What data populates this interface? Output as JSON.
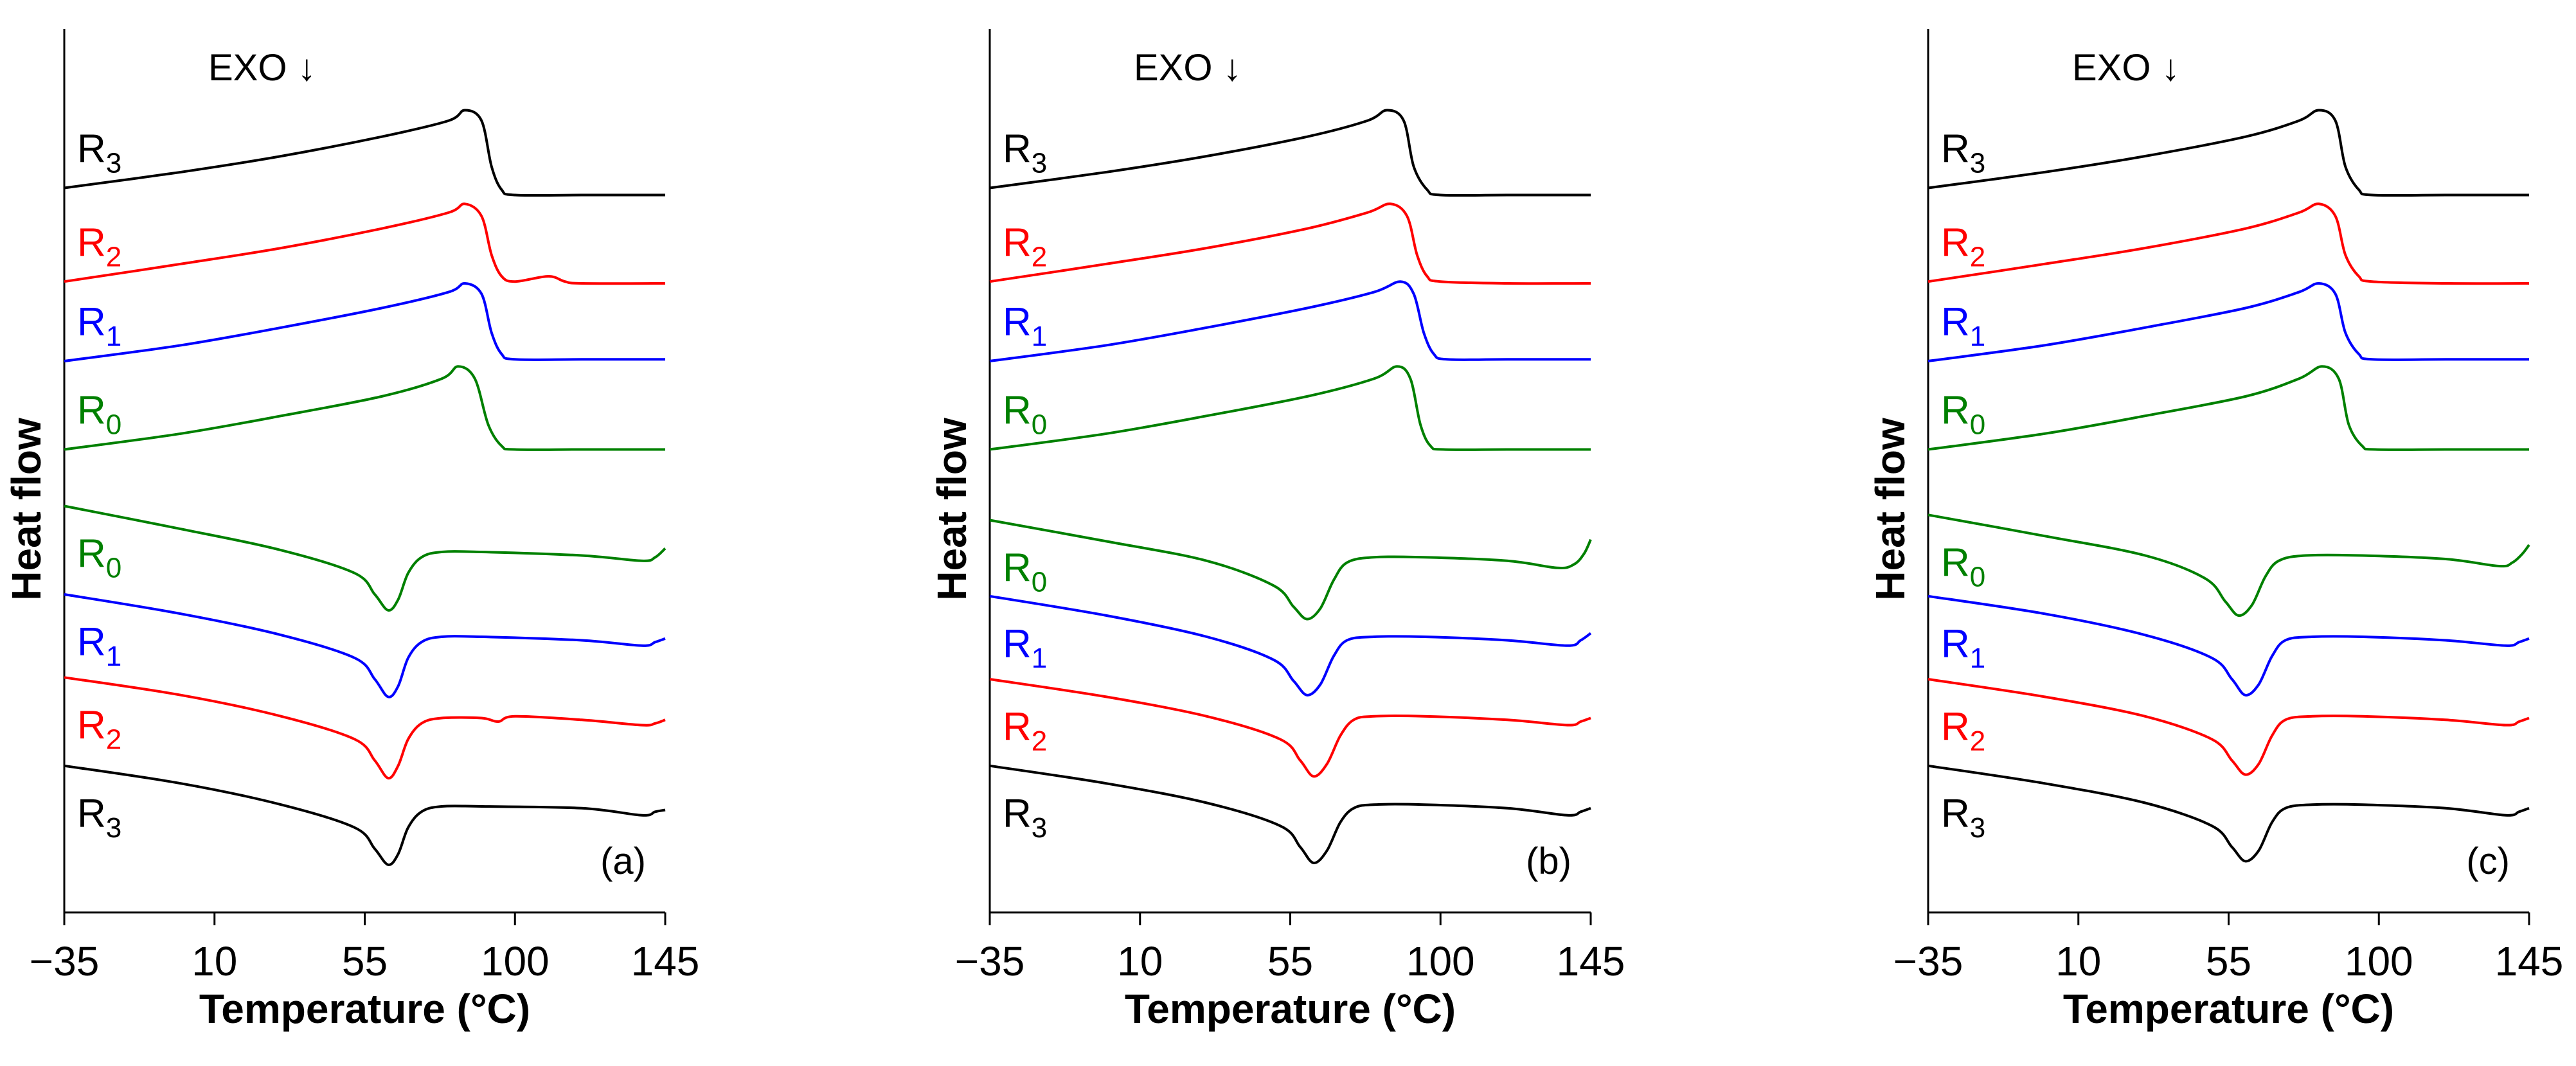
{
  "chart_data": [
    {
      "panel_label": "(a)",
      "type": "line",
      "xlabel": "Temperature (°C)",
      "ylabel": "Heat flow",
      "annotation": "EXO ↓",
      "xlim": [
        -35,
        145
      ],
      "x_ticks": [
        "−35",
        "10",
        "55",
        "100",
        "145"
      ],
      "series": [
        {
          "name": "R3",
          "label_main": "R",
          "label_sub": "3",
          "group": "upper",
          "color": "#000000",
          "x": [
            -35,
            0,
            30,
            60,
            80,
            85,
            90,
            93,
            96,
            100,
            120,
            145
          ],
          "y": [
            10.0,
            10.45,
            10.9,
            11.45,
            11.9,
            12.2,
            11.9,
            10.6,
            9.95,
            9.8,
            9.8,
            9.8
          ]
        },
        {
          "name": "R2",
          "label_main": "R",
          "label_sub": "2",
          "group": "upper",
          "color": "#ff0000",
          "x": [
            -35,
            0,
            30,
            60,
            80,
            85,
            90,
            93,
            96,
            100,
            110,
            115,
            120,
            145
          ],
          "y": [
            7.35,
            7.85,
            8.3,
            8.85,
            9.3,
            9.55,
            9.2,
            8.1,
            7.5,
            7.35,
            7.5,
            7.35,
            7.3,
            7.3
          ]
        },
        {
          "name": "R1",
          "label_main": "R",
          "label_sub": "1",
          "group": "upper",
          "color": "#0000ff",
          "x": [
            -35,
            0,
            30,
            60,
            80,
            85,
            90,
            93,
            96,
            100,
            120,
            145
          ],
          "y": [
            5.1,
            5.55,
            6.05,
            6.6,
            7.05,
            7.3,
            7.0,
            5.9,
            5.3,
            5.15,
            5.15,
            5.15
          ]
        },
        {
          "name": "R0",
          "label_main": "R",
          "label_sub": "0",
          "group": "upper",
          "color": "#008000",
          "x": [
            -35,
            0,
            30,
            60,
            78,
            83,
            88,
            92,
            96,
            100,
            120,
            145
          ],
          "y": [
            2.6,
            3.05,
            3.55,
            4.1,
            4.6,
            4.95,
            4.6,
            3.3,
            2.7,
            2.6,
            2.6,
            2.6
          ]
        },
        {
          "name": "R0",
          "label_main": "R",
          "label_sub": "0",
          "group": "lower",
          "color": "#008000",
          "x": [
            -35,
            0,
            30,
            52,
            58,
            62,
            65,
            68,
            72,
            78,
            90,
            120,
            138,
            142,
            145
          ],
          "y": [
            1.0,
            0.35,
            -0.25,
            -0.9,
            -1.5,
            -1.95,
            -1.65,
            -0.9,
            -0.45,
            -0.3,
            -0.3,
            -0.4,
            -0.55,
            -0.45,
            -0.2
          ]
        },
        {
          "name": "R1",
          "label_main": "R",
          "label_sub": "1",
          "group": "lower",
          "color": "#0000ff",
          "x": [
            -35,
            0,
            30,
            52,
            58,
            62,
            65,
            68,
            72,
            78,
            90,
            120,
            138,
            142,
            145
          ],
          "y": [
            -1.5,
            -2.05,
            -2.65,
            -3.3,
            -3.9,
            -4.4,
            -4.1,
            -3.3,
            -2.85,
            -2.7,
            -2.7,
            -2.8,
            -2.95,
            -2.85,
            -2.75
          ]
        },
        {
          "name": "R2",
          "label_main": "R",
          "label_sub": "2",
          "group": "lower",
          "color": "#ff0000",
          "x": [
            -35,
            0,
            30,
            52,
            58,
            62,
            65,
            68,
            72,
            78,
            90,
            95,
            100,
            120,
            138,
            142,
            145
          ],
          "y": [
            -3.85,
            -4.35,
            -4.95,
            -5.6,
            -6.2,
            -6.7,
            -6.35,
            -5.6,
            -5.15,
            -5.0,
            -5.0,
            -5.1,
            -4.95,
            -5.05,
            -5.2,
            -5.15,
            -5.05
          ]
        },
        {
          "name": "R3",
          "label_main": "R",
          "label_sub": "3",
          "group": "lower",
          "color": "#000000",
          "x": [
            -35,
            0,
            30,
            52,
            58,
            62,
            65,
            68,
            72,
            78,
            90,
            120,
            138,
            142,
            145
          ],
          "y": [
            -6.35,
            -6.85,
            -7.45,
            -8.1,
            -8.7,
            -9.15,
            -8.85,
            -8.1,
            -7.65,
            -7.5,
            -7.5,
            -7.55,
            -7.75,
            -7.65,
            -7.6
          ]
        }
      ]
    },
    {
      "panel_label": "(b)",
      "type": "line",
      "xlabel": "Temperature (°C)",
      "ylabel": "Heat flow",
      "annotation": "EXO ↓",
      "xlim": [
        -35,
        145
      ],
      "x_ticks": [
        "−35",
        "10",
        "55",
        "100",
        "145"
      ],
      "series": [
        {
          "name": "R3",
          "label_main": "R",
          "label_sub": "3",
          "group": "upper",
          "color": "#000000",
          "x": [
            -35,
            0,
            30,
            60,
            78,
            84,
            89,
            92,
            96,
            100,
            120,
            145
          ],
          "y": [
            10.0,
            10.45,
            10.9,
            11.45,
            11.9,
            12.2,
            11.9,
            10.6,
            9.95,
            9.8,
            9.8,
            9.8
          ]
        },
        {
          "name": "R2",
          "label_main": "R",
          "label_sub": "2",
          "group": "upper",
          "color": "#ff0000",
          "x": [
            -35,
            0,
            30,
            60,
            78,
            85,
            90,
            93,
            96,
            100,
            120,
            145
          ],
          "y": [
            7.35,
            7.85,
            8.3,
            8.85,
            9.3,
            9.55,
            9.2,
            8.1,
            7.5,
            7.35,
            7.3,
            7.3
          ]
        },
        {
          "name": "R1",
          "label_main": "R",
          "label_sub": "1",
          "group": "upper",
          "color": "#0000ff",
          "x": [
            -35,
            0,
            30,
            60,
            80,
            88,
            92,
            95,
            98,
            102,
            120,
            145
          ],
          "y": [
            5.1,
            5.55,
            6.05,
            6.6,
            7.05,
            7.35,
            7.0,
            5.9,
            5.3,
            5.15,
            5.15,
            5.15
          ]
        },
        {
          "name": "R0",
          "label_main": "R",
          "label_sub": "0",
          "group": "upper",
          "color": "#008000",
          "x": [
            -35,
            0,
            30,
            60,
            80,
            87,
            91,
            94,
            97,
            101,
            120,
            145
          ],
          "y": [
            2.6,
            3.05,
            3.55,
            4.1,
            4.6,
            4.95,
            4.6,
            3.3,
            2.7,
            2.6,
            2.6,
            2.6
          ]
        },
        {
          "name": "R0",
          "label_main": "R",
          "label_sub": "0",
          "group": "lower",
          "color": "#008000",
          "x": [
            -35,
            0,
            30,
            50,
            56,
            60,
            64,
            68,
            72,
            80,
            95,
            120,
            135,
            140,
            143,
            145
          ],
          "y": [
            0.6,
            0.0,
            -0.55,
            -1.25,
            -1.85,
            -2.2,
            -1.9,
            -1.1,
            -0.6,
            -0.45,
            -0.45,
            -0.55,
            -0.75,
            -0.65,
            -0.35,
            0.05
          ]
        },
        {
          "name": "R1",
          "label_main": "R",
          "label_sub": "1",
          "group": "lower",
          "color": "#0000ff",
          "x": [
            -35,
            0,
            30,
            50,
            56,
            60,
            64,
            68,
            72,
            80,
            95,
            120,
            138,
            142,
            145
          ],
          "y": [
            -1.55,
            -2.1,
            -2.7,
            -3.35,
            -3.95,
            -4.35,
            -4.05,
            -3.25,
            -2.8,
            -2.7,
            -2.7,
            -2.8,
            -2.95,
            -2.8,
            -2.6
          ]
        },
        {
          "name": "R2",
          "label_main": "R",
          "label_sub": "2",
          "group": "lower",
          "color": "#ff0000",
          "x": [
            -35,
            0,
            30,
            52,
            58,
            62,
            66,
            70,
            74,
            80,
            95,
            120,
            138,
            142,
            145
          ],
          "y": [
            -3.9,
            -4.4,
            -4.95,
            -5.6,
            -6.2,
            -6.65,
            -6.3,
            -5.5,
            -5.05,
            -4.95,
            -4.95,
            -5.05,
            -5.2,
            -5.1,
            -5.0
          ]
        },
        {
          "name": "R3",
          "label_main": "R",
          "label_sub": "3",
          "group": "lower",
          "color": "#000000",
          "x": [
            -35,
            0,
            30,
            52,
            58,
            62,
            66,
            70,
            74,
            80,
            95,
            120,
            138,
            142,
            145
          ],
          "y": [
            -6.35,
            -6.85,
            -7.4,
            -8.05,
            -8.65,
            -9.1,
            -8.75,
            -7.95,
            -7.55,
            -7.45,
            -7.45,
            -7.55,
            -7.75,
            -7.65,
            -7.55
          ]
        }
      ]
    },
    {
      "panel_label": "(c)",
      "type": "line",
      "xlabel": "Temperature (°C)",
      "ylabel": "Heat flow",
      "annotation": "EXO ↓",
      "xlim": [
        -35,
        145
      ],
      "x_ticks": [
        "−35",
        "10",
        "55",
        "100",
        "145"
      ],
      "series": [
        {
          "name": "R3",
          "label_main": "R",
          "label_sub": "3",
          "group": "upper",
          "color": "#000000",
          "x": [
            -35,
            0,
            30,
            60,
            76,
            82,
            87,
            90,
            94,
            98,
            120,
            145
          ],
          "y": [
            10.0,
            10.45,
            10.9,
            11.45,
            11.9,
            12.2,
            11.9,
            10.6,
            9.95,
            9.8,
            9.8,
            9.8
          ]
        },
        {
          "name": "R2",
          "label_main": "R",
          "label_sub": "2",
          "group": "upper",
          "color": "#ff0000",
          "x": [
            -35,
            0,
            30,
            60,
            76,
            82,
            87,
            90,
            94,
            98,
            120,
            145
          ],
          "y": [
            7.35,
            7.85,
            8.3,
            8.85,
            9.3,
            9.55,
            9.2,
            8.1,
            7.5,
            7.35,
            7.3,
            7.3
          ]
        },
        {
          "name": "R1",
          "label_main": "R",
          "label_sub": "1",
          "group": "upper",
          "color": "#0000ff",
          "x": [
            -35,
            0,
            30,
            60,
            76,
            82,
            87,
            90,
            94,
            98,
            120,
            145
          ],
          "y": [
            5.1,
            5.55,
            6.05,
            6.6,
            7.05,
            7.3,
            7.0,
            5.9,
            5.3,
            5.15,
            5.15,
            5.15
          ]
        },
        {
          "name": "R0",
          "label_main": "R",
          "label_sub": "0",
          "group": "upper",
          "color": "#008000",
          "x": [
            -35,
            0,
            30,
            60,
            76,
            83,
            88,
            91,
            95,
            99,
            120,
            145
          ],
          "y": [
            2.6,
            3.05,
            3.55,
            4.1,
            4.6,
            4.95,
            4.6,
            3.3,
            2.7,
            2.6,
            2.6,
            2.6
          ]
        },
        {
          "name": "R0",
          "label_main": "R",
          "label_sub": "0",
          "group": "lower",
          "color": "#008000",
          "x": [
            -35,
            0,
            30,
            48,
            54,
            58,
            62,
            66,
            70,
            78,
            95,
            120,
            136,
            140,
            143,
            145
          ],
          "y": [
            0.75,
            0.15,
            -0.4,
            -1.05,
            -1.7,
            -2.1,
            -1.8,
            -1.0,
            -0.55,
            -0.4,
            -0.4,
            -0.5,
            -0.7,
            -0.6,
            -0.35,
            -0.1
          ]
        },
        {
          "name": "R1",
          "label_main": "R",
          "label_sub": "1",
          "group": "lower",
          "color": "#0000ff",
          "x": [
            -35,
            0,
            30,
            50,
            56,
            60,
            64,
            68,
            72,
            80,
            95,
            120,
            138,
            142,
            145
          ],
          "y": [
            -1.55,
            -2.05,
            -2.65,
            -3.3,
            -3.9,
            -4.35,
            -4.05,
            -3.25,
            -2.8,
            -2.7,
            -2.7,
            -2.8,
            -2.95,
            -2.85,
            -2.75
          ]
        },
        {
          "name": "R2",
          "label_main": "R",
          "label_sub": "2",
          "group": "lower",
          "color": "#ff0000",
          "x": [
            -35,
            0,
            30,
            50,
            56,
            60,
            64,
            68,
            72,
            80,
            95,
            120,
            138,
            142,
            145
          ],
          "y": [
            -3.9,
            -4.4,
            -4.95,
            -5.6,
            -6.2,
            -6.6,
            -6.3,
            -5.5,
            -5.05,
            -4.95,
            -4.95,
            -5.05,
            -5.2,
            -5.1,
            -5.0
          ]
        },
        {
          "name": "R3",
          "label_main": "R",
          "label_sub": "3",
          "group": "lower",
          "color": "#000000",
          "x": [
            -35,
            0,
            30,
            50,
            56,
            60,
            64,
            68,
            72,
            80,
            95,
            120,
            138,
            142,
            145
          ],
          "y": [
            -6.35,
            -6.85,
            -7.4,
            -8.05,
            -8.65,
            -9.05,
            -8.75,
            -7.95,
            -7.55,
            -7.45,
            -7.45,
            -7.55,
            -7.75,
            -7.65,
            -7.55
          ]
        }
      ]
    }
  ]
}
